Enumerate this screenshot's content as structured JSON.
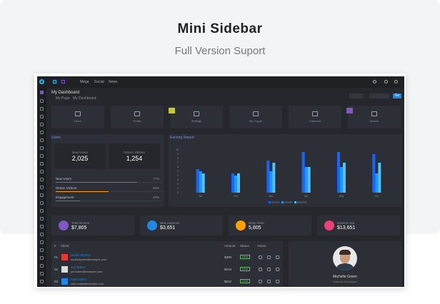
{
  "header": {
    "title": "Mini Sidebar",
    "subtitle": "Full Version Suport"
  },
  "dashboard": {
    "nav": [
      "Mega",
      "Social",
      "News"
    ],
    "breadcrumb": {
      "title": "My Dashboard",
      "items": [
        "My Page",
        "My Dashboard"
      ]
    },
    "button": "Go",
    "cards": [
      "Inbox",
      "Profile",
      "Settings",
      "My Crypto",
      "Calendar",
      "Invoice"
    ],
    "users": {
      "title": "Users",
      "stats": [
        {
          "label": "New Users",
          "value": "2,025"
        },
        {
          "label": "Return Visitors",
          "value": "1,254"
        }
      ],
      "progress": [
        {
          "label": "New Users",
          "value": "77%"
        },
        {
          "label": "Return Visitors",
          "value": "50%"
        },
        {
          "label": "Engagement",
          "value": "23%"
        }
      ]
    },
    "summary": [
      {
        "label": "Total income",
        "value": "$7,805"
      },
      {
        "label": "New expense",
        "value": "$3,651"
      },
      {
        "label": "Daily Visits",
        "value": "5,805"
      },
      {
        "label": "Bounce rate",
        "value": "$13,651"
      }
    ],
    "table": {
      "headers": [
        "#",
        "Client",
        "Amount",
        "Status",
        "Action"
      ],
      "rows": [
        {
          "num": "01",
          "name": "South Skyrine",
          "email": "southskyrine@example.com",
          "amount": "$300",
          "status": "Done"
        },
        {
          "num": "02",
          "name": "Joe Baker",
          "email": "joe.baker@example.com",
          "amount": "$216",
          "status": "Done"
        },
        {
          "num": "03",
          "name": "Calo Nolan",
          "email": "calo.nolan@example.com",
          "amount": "$612",
          "status": "Done"
        }
      ]
    },
    "profile": {
      "name": "Michelle Green",
      "role": "Intracell Developer"
    }
  },
  "chart_data": {
    "type": "bar",
    "title": "Earning Report",
    "categories": [
      "Jan",
      "Feb",
      "Mar",
      "Apr",
      "May",
      "Jun"
    ],
    "series": [
      {
        "name": "Income",
        "color": "#1565ff",
        "values": [
          5.5,
          4.5,
          7.5,
          9.5,
          9.5,
          9
        ]
      },
      {
        "name": "Growth",
        "color": "#2196f3",
        "values": [
          5,
          4,
          5,
          6,
          6,
          4.5
        ]
      },
      {
        "name": "Expense",
        "color": "#4fc3f7",
        "values": [
          4.5,
          4.5,
          7,
          6,
          7,
          7
        ]
      }
    ],
    "ylim": [
      0,
      10
    ],
    "yticks": [
      0,
      1,
      2,
      3,
      4,
      5,
      6,
      7,
      8,
      9,
      10
    ]
  }
}
